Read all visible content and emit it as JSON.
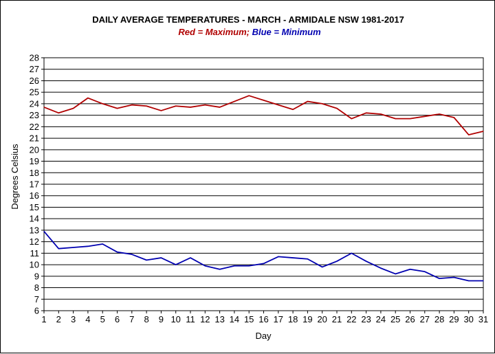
{
  "chart_data": {
    "type": "line",
    "title": "DAILY AVERAGE  TEMPERATURES - MARCH - ARMIDALE NSW  1981-2017",
    "subtitle": {
      "red_word": "Red",
      "max_text": " = Maximum;  ",
      "blue_word": "Blue",
      "min_text": " = Minimum"
    },
    "xlabel": "Day",
    "ylabel": "Degrees Celsius",
    "xlim": [
      1,
      31
    ],
    "ylim": [
      6,
      28
    ],
    "grid": true,
    "x": [
      1,
      2,
      3,
      4,
      5,
      6,
      7,
      8,
      9,
      10,
      11,
      12,
      13,
      14,
      15,
      16,
      17,
      18,
      19,
      20,
      21,
      22,
      23,
      24,
      25,
      26,
      27,
      28,
      29,
      30,
      31
    ],
    "series": [
      {
        "name": "Maximum",
        "color": "#b00000",
        "values": [
          23.7,
          23.2,
          23.6,
          24.5,
          24.0,
          23.6,
          23.9,
          23.8,
          23.4,
          23.8,
          23.7,
          23.9,
          23.7,
          24.2,
          24.7,
          24.3,
          23.9,
          23.5,
          24.2,
          24.0,
          23.6,
          22.7,
          23.2,
          23.1,
          22.7,
          22.7,
          22.9,
          23.1,
          22.8,
          21.3,
          21.6
        ]
      },
      {
        "name": "Minimum",
        "color": "#0000b0",
        "values": [
          12.9,
          11.4,
          11.5,
          11.6,
          11.8,
          11.1,
          10.9,
          10.4,
          10.6,
          10.0,
          10.6,
          9.9,
          9.6,
          9.9,
          9.9,
          10.1,
          10.7,
          10.6,
          10.5,
          9.8,
          10.3,
          11.0,
          10.3,
          9.7,
          9.2,
          9.6,
          9.4,
          8.8,
          8.9,
          8.6,
          8.6
        ]
      }
    ],
    "colors": {
      "red": "#b00000",
      "blue": "#0000b0"
    }
  }
}
